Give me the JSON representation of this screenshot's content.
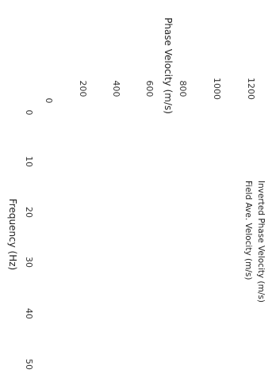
{
  "chart_data": {
    "type": "line",
    "xlabel": "Frequency (Hz)",
    "ylabel": "Phase Velocity (m/s)",
    "x_ticks": [
      "0",
      "10",
      "20",
      "30",
      "40",
      "50"
    ],
    "y_ticks": [
      "0",
      "200",
      "400",
      "600",
      "800",
      "1000",
      "1200"
    ],
    "xlim": [
      0,
      50
    ],
    "ylim": [
      0,
      1200
    ],
    "grid": false,
    "legend_position": "top-right",
    "series": [
      {
        "name": "Inverted Phase Velocity (m/s)",
        "values": []
      },
      {
        "name": "Field Ave. Velocity (m/s)",
        "values": []
      }
    ]
  }
}
